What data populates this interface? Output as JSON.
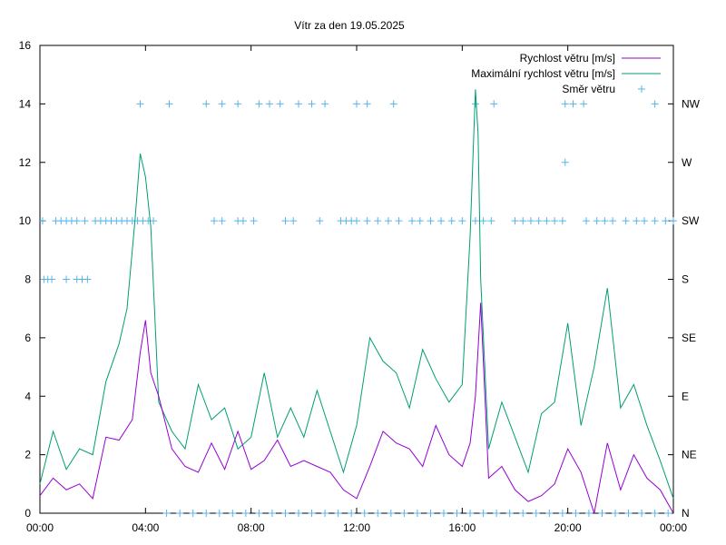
{
  "chart_data": {
    "type": "line",
    "title": "Vítr za den 19.05.2025",
    "x_tick_labels": [
      "00:00",
      "04:00",
      "08:00",
      "12:00",
      "16:00",
      "20:00",
      "00:00"
    ],
    "x_range_hours": [
      0,
      24
    ],
    "y_left": {
      "range": [
        0,
        16
      ],
      "ticks": [
        "0",
        "2",
        "4",
        "6",
        "8",
        "10",
        "12",
        "14",
        "16"
      ]
    },
    "y_right": {
      "ticks": [
        "N",
        "NE",
        "E",
        "SE",
        "S",
        "SW",
        "W",
        "NW"
      ],
      "values": [
        0,
        2,
        4,
        6,
        8,
        10,
        12,
        14
      ]
    },
    "legend_position": "top-right",
    "grid": false,
    "colors": {
      "speed": "#9400d3",
      "gust": "#009e73",
      "direction": "#56b4e9"
    },
    "series": [
      {
        "name": "Rychlost větru [m/s]",
        "kind": "line",
        "x_hours": [
          0,
          0.5,
          1,
          1.5,
          2,
          2.5,
          3,
          3.5,
          3.8,
          4,
          4.2,
          4.5,
          5,
          5.5,
          6,
          6.5,
          7,
          7.5,
          8,
          8.5,
          9,
          9.5,
          10,
          10.5,
          11,
          11.5,
          12,
          12.5,
          13,
          13.5,
          14,
          14.5,
          15,
          15.5,
          16,
          16.3,
          16.5,
          16.7,
          17,
          17.5,
          18,
          18.5,
          19,
          19.5,
          20,
          20.5,
          21,
          21.5,
          22,
          22.5,
          23,
          23.5,
          24
        ],
        "values": [
          0.6,
          1.2,
          0.8,
          1.0,
          0.5,
          2.6,
          2.5,
          3.2,
          5.5,
          6.6,
          4.8,
          4.0,
          2.2,
          1.6,
          1.4,
          2.4,
          1.5,
          2.8,
          1.5,
          1.8,
          2.5,
          1.6,
          1.8,
          1.6,
          1.4,
          0.8,
          0.5,
          1.6,
          2.8,
          2.4,
          2.2,
          1.6,
          3.0,
          2.0,
          1.6,
          2.4,
          4.0,
          7.2,
          1.2,
          1.6,
          0.8,
          0.4,
          0.6,
          1.0,
          2.2,
          1.4,
          0.0,
          2.4,
          0.8,
          2.0,
          1.2,
          0.8,
          0.0
        ]
      },
      {
        "name": "Maximální rychlost větru [m/s]",
        "kind": "line",
        "x_hours": [
          0,
          0.5,
          1,
          1.5,
          2,
          2.5,
          3,
          3.3,
          3.6,
          3.8,
          4,
          4.2,
          4.5,
          5,
          5.5,
          6,
          6.5,
          7,
          7.5,
          8,
          8.5,
          9,
          9.5,
          10,
          10.5,
          11,
          11.5,
          12,
          12.5,
          13,
          13.5,
          14,
          14.5,
          15,
          15.5,
          16,
          16.3,
          16.5,
          16.6,
          16.7,
          17,
          17.5,
          18,
          18.5,
          19,
          19.5,
          20,
          20.5,
          21,
          21.5,
          22,
          22.5,
          23,
          23.5,
          24
        ],
        "values": [
          1.0,
          2.8,
          1.5,
          2.2,
          2.0,
          4.5,
          5.8,
          7.0,
          10.0,
          12.3,
          11.5,
          9.8,
          3.8,
          2.8,
          2.2,
          4.4,
          3.2,
          3.6,
          2.2,
          2.6,
          4.8,
          2.6,
          3.6,
          2.6,
          4.2,
          2.8,
          1.4,
          3.0,
          6.0,
          5.2,
          4.8,
          3.6,
          5.6,
          4.6,
          3.8,
          4.4,
          9.5,
          14.5,
          13.0,
          8.0,
          2.2,
          3.8,
          2.6,
          1.4,
          3.4,
          3.8,
          6.5,
          3.0,
          5.0,
          7.7,
          3.6,
          4.4,
          3.0,
          1.8,
          0.5
        ]
      },
      {
        "name": "Směr větru",
        "kind": "points",
        "groups": [
          {
            "value": 8,
            "x_hours": [
              0.15,
              0.3,
              0.45,
              1.0,
              1.4,
              1.6,
              1.8
            ]
          },
          {
            "value": 10,
            "x_hours": [
              0.1,
              0.6,
              0.8,
              1.0,
              1.2,
              1.4,
              1.7,
              2.1,
              2.3,
              2.5,
              2.7,
              2.9,
              3.1,
              3.3,
              3.5,
              3.7,
              3.9,
              4.1,
              4.3,
              6.6,
              6.9,
              7.5,
              7.7,
              8.1,
              9.3,
              9.6,
              10.6,
              11.4,
              11.6,
              11.8,
              12.0,
              12.4,
              12.8,
              13.2,
              13.6,
              14.1,
              14.4,
              14.8,
              15.2,
              15.6,
              16.0,
              16.5,
              16.8,
              17.1,
              18.0,
              18.3,
              18.6,
              18.9,
              19.2,
              19.5,
              19.8,
              20.7,
              21.1,
              21.4,
              21.7,
              22.2,
              22.6,
              22.9,
              23.3,
              23.7,
              24.0
            ]
          },
          {
            "value": 12,
            "x_hours": [
              19.9
            ]
          },
          {
            "value": 14,
            "x_hours": [
              3.8,
              4.9,
              6.3,
              6.9,
              7.5,
              8.3,
              8.7,
              9.1,
              9.8,
              10.3,
              10.8,
              12.0,
              12.4,
              13.4,
              16.5,
              17.2,
              19.9,
              20.2,
              20.6,
              23.3
            ]
          },
          {
            "value": 0,
            "x_hours": [
              4.8,
              5.3,
              5.8,
              6.3,
              6.8,
              7.3,
              7.8,
              8.3,
              8.8,
              9.3,
              9.8,
              10.3,
              10.8,
              11.3,
              11.8,
              12.3,
              12.8,
              13.3,
              13.8,
              14.3,
              14.8,
              15.3,
              15.8,
              16.3,
              16.8,
              17.3,
              17.8,
              18.3,
              18.8,
              19.3,
              19.8,
              20.3,
              20.8,
              21.3,
              21.8,
              22.3,
              22.8,
              23.3,
              23.8
            ]
          }
        ]
      }
    ]
  }
}
